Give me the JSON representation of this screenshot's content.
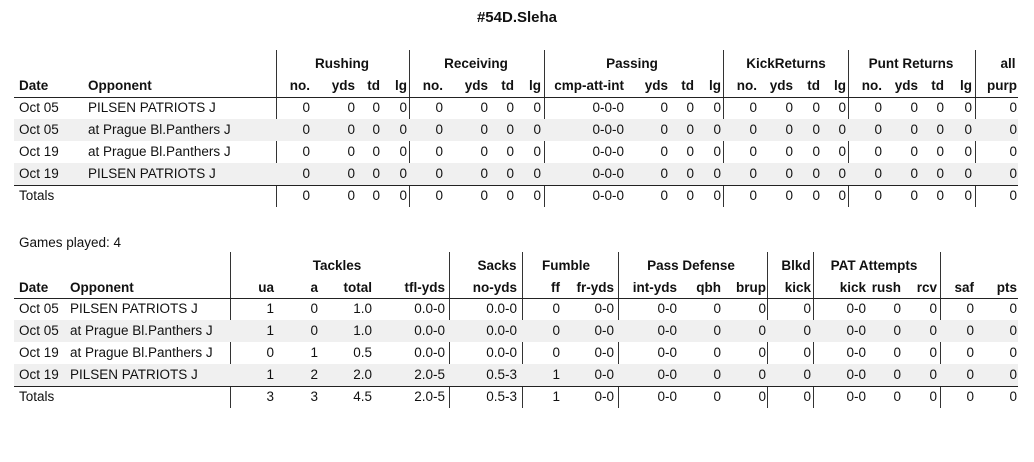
{
  "title": "#54D.Sleha",
  "offense": {
    "groups": [
      "Rushing",
      "Receiving",
      "Passing",
      "KickReturns",
      "Punt Returns",
      "all"
    ],
    "headers": [
      "Date",
      "Opponent",
      "no.",
      "yds",
      "td",
      "lg",
      "no.",
      "yds",
      "td",
      "lg",
      "cmp-att-int",
      "yds",
      "td",
      "lg",
      "no.",
      "yds",
      "td",
      "lg",
      "no.",
      "yds",
      "td",
      "lg",
      "purp"
    ],
    "rows": [
      [
        "Oct 05",
        "PILSEN PATRIOTS J",
        "0",
        "0",
        "0",
        "0",
        "0",
        "0",
        "0",
        "0",
        "0-0-0",
        "0",
        "0",
        "0",
        "0",
        "0",
        "0",
        "0",
        "0",
        "0",
        "0",
        "0",
        "0"
      ],
      [
        "Oct 05",
        "at Prague Bl.Panthers J",
        "0",
        "0",
        "0",
        "0",
        "0",
        "0",
        "0",
        "0",
        "0-0-0",
        "0",
        "0",
        "0",
        "0",
        "0",
        "0",
        "0",
        "0",
        "0",
        "0",
        "0",
        "0"
      ],
      [
        "Oct 19",
        "at Prague Bl.Panthers J",
        "0",
        "0",
        "0",
        "0",
        "0",
        "0",
        "0",
        "0",
        "0-0-0",
        "0",
        "0",
        "0",
        "0",
        "0",
        "0",
        "0",
        "0",
        "0",
        "0",
        "0",
        "0"
      ],
      [
        "Oct 19",
        "PILSEN PATRIOTS J",
        "0",
        "0",
        "0",
        "0",
        "0",
        "0",
        "0",
        "0",
        "0-0-0",
        "0",
        "0",
        "0",
        "0",
        "0",
        "0",
        "0",
        "0",
        "0",
        "0",
        "0",
        "0"
      ]
    ],
    "totals": [
      "Totals",
      "",
      "0",
      "0",
      "0",
      "0",
      "0",
      "0",
      "0",
      "0",
      "0-0-0",
      "0",
      "0",
      "0",
      "0",
      "0",
      "0",
      "0",
      "0",
      "0",
      "0",
      "0",
      "0"
    ]
  },
  "games_played": "Games played: 4",
  "defense": {
    "groups": [
      "Tackles",
      "Sacks",
      "Fumble",
      "Pass Defense",
      "Blkd",
      "PAT Attempts"
    ],
    "headers": [
      "Date",
      "Opponent",
      "ua",
      "a",
      "total",
      "tfl-yds",
      "no-yds",
      "ff",
      "fr-yds",
      "int-yds",
      "qbh",
      "brup",
      "kick",
      "kick",
      "rush",
      "rcv",
      "saf",
      "pts"
    ],
    "rows": [
      [
        "Oct 05",
        "PILSEN PATRIOTS J",
        "1",
        "0",
        "1.0",
        "0.0-0",
        "0.0-0",
        "0",
        "0-0",
        "0-0",
        "0",
        "0",
        "0",
        "0-0",
        "0",
        "0",
        "0",
        "0"
      ],
      [
        "Oct 05",
        "at Prague Bl.Panthers J",
        "1",
        "0",
        "1.0",
        "0.0-0",
        "0.0-0",
        "0",
        "0-0",
        "0-0",
        "0",
        "0",
        "0",
        "0-0",
        "0",
        "0",
        "0",
        "0"
      ],
      [
        "Oct 19",
        "at Prague Bl.Panthers J",
        "0",
        "1",
        "0.5",
        "0.0-0",
        "0.0-0",
        "0",
        "0-0",
        "0-0",
        "0",
        "0",
        "0",
        "0-0",
        "0",
        "0",
        "0",
        "0"
      ],
      [
        "Oct 19",
        "PILSEN PATRIOTS J",
        "1",
        "2",
        "2.0",
        "2.0-5",
        "0.5-3",
        "1",
        "0-0",
        "0-0",
        "0",
        "0",
        "0",
        "0-0",
        "0",
        "0",
        "0",
        "0"
      ]
    ],
    "totals": [
      "Totals",
      "",
      "3",
      "3",
      "4.5",
      "2.0-5",
      "0.5-3",
      "1",
      "0-0",
      "0-0",
      "0",
      "0",
      "0",
      "0-0",
      "0",
      "0",
      "0",
      "0"
    ]
  }
}
